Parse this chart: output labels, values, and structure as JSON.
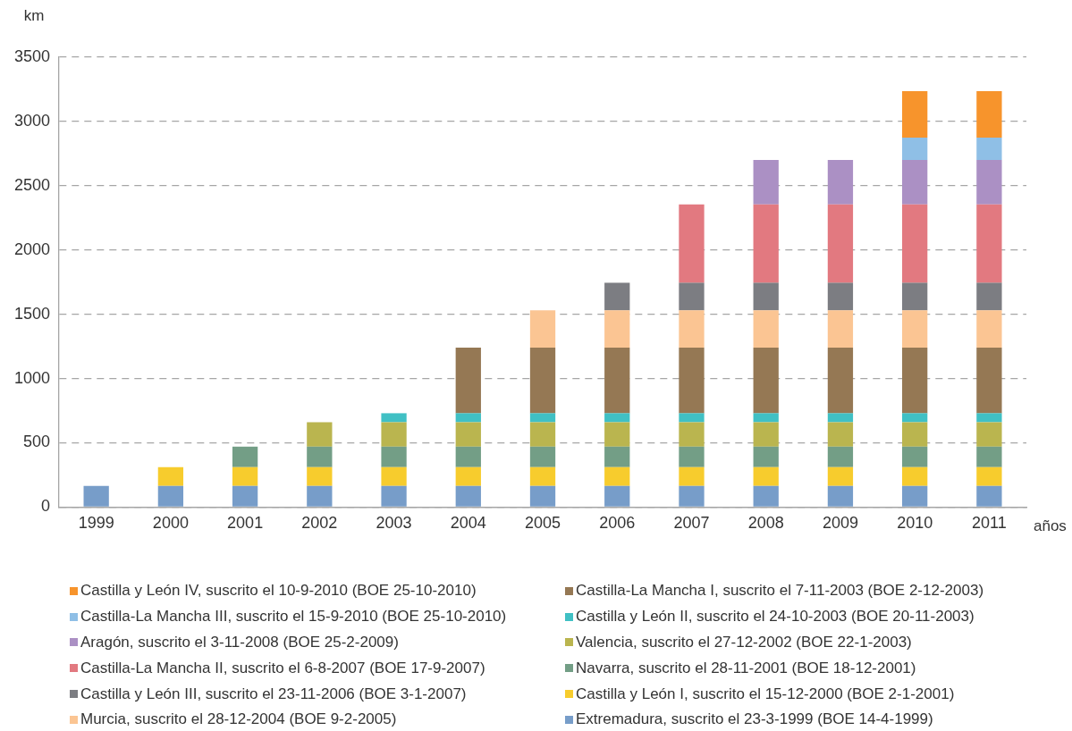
{
  "chart_data": {
    "type": "bar",
    "stacked": true,
    "ylabel": "km",
    "xlabel": "años",
    "categories": [
      "1999",
      "2000",
      "2001",
      "2002",
      "2003",
      "2004",
      "2005",
      "2006",
      "2007",
      "2008",
      "2009",
      "2010",
      "2011"
    ],
    "ylim": [
      0,
      3500
    ],
    "yticks": [
      0,
      500,
      1000,
      1500,
      2000,
      2500,
      3000,
      3500
    ],
    "grid": "y",
    "legend": "bottom",
    "series": [
      {
        "name": "Extremadura, suscrito el 23-3-1999 (BOE 14-4-1999)",
        "color": "#779dc9",
        "values": [
          165,
          165,
          165,
          165,
          165,
          165,
          165,
          165,
          165,
          165,
          165,
          165,
          165
        ]
      },
      {
        "name": "Castilla y León I, suscrito el 15-12-2000 (BOE 2-1-2001)",
        "color": "#f7cc2d",
        "values": [
          null,
          145,
          145,
          145,
          145,
          145,
          145,
          145,
          145,
          145,
          145,
          145,
          145
        ]
      },
      {
        "name": "Navarra, suscrito el 28-11-2001 (BOE 18-12-2001)",
        "color": "#739e86",
        "values": [
          null,
          null,
          160,
          160,
          160,
          160,
          160,
          160,
          160,
          160,
          160,
          160,
          160
        ]
      },
      {
        "name": "Valencia, suscrito el 27-12-2002 (BOE 22-1-2003)",
        "color": "#bab54f",
        "values": [
          null,
          null,
          null,
          190,
          190,
          190,
          190,
          190,
          190,
          190,
          190,
          190,
          190
        ]
      },
      {
        "name": "Castilla y León II, suscrito el 24-10-2003 (BOE 20-11-2003)",
        "color": "#40c0c4",
        "values": [
          null,
          null,
          null,
          null,
          70,
          70,
          70,
          70,
          70,
          70,
          70,
          70,
          70
        ]
      },
      {
        "name": "Castilla-La Mancha I, suscrito el 7-11-2003 (BOE 2-12-2003)",
        "color": "#957854",
        "values": [
          null,
          null,
          null,
          null,
          null,
          510,
          510,
          510,
          510,
          510,
          510,
          510,
          510
        ]
      },
      {
        "name": "Murcia, suscrito el 28-12-2004 (BOE 9-2-2005)",
        "color": "#fbc593",
        "values": [
          null,
          null,
          null,
          null,
          null,
          null,
          290,
          290,
          290,
          290,
          290,
          290,
          290
        ]
      },
      {
        "name": "Castilla y León III, suscrito el 23-11-2006 (BOE 3-1-2007)",
        "color": "#7c7d82",
        "values": [
          null,
          null,
          null,
          null,
          null,
          null,
          null,
          215,
          215,
          215,
          215,
          215,
          215
        ]
      },
      {
        "name": "Castilla-La Mancha II, suscrito el 6-8-2007 (BOE 17-9-2007)",
        "color": "#e27980",
        "values": [
          null,
          null,
          null,
          null,
          null,
          null,
          null,
          null,
          610,
          610,
          610,
          610,
          610
        ]
      },
      {
        "name": "Aragón, suscrito el 3-11-2008 (BOE 25-2-2009)",
        "color": "#ab90c4",
        "values": [
          null,
          null,
          null,
          null,
          null,
          null,
          null,
          null,
          null,
          345,
          345,
          345,
          345
        ]
      },
      {
        "name": "Castilla-La Mancha III, suscrito el 15-9-2010 (BOE 25-10-2010)",
        "color": "#8fbfe6",
        "values": [
          null,
          null,
          null,
          null,
          null,
          null,
          null,
          null,
          null,
          null,
          null,
          175,
          175
        ]
      },
      {
        "name": "Castilla y León IV, suscrito el 10-9-2010 (BOE 25-10-2010)",
        "color": "#f7942c",
        "values": [
          null,
          null,
          null,
          null,
          null,
          null,
          null,
          null,
          null,
          null,
          null,
          360,
          360
        ]
      }
    ]
  }
}
